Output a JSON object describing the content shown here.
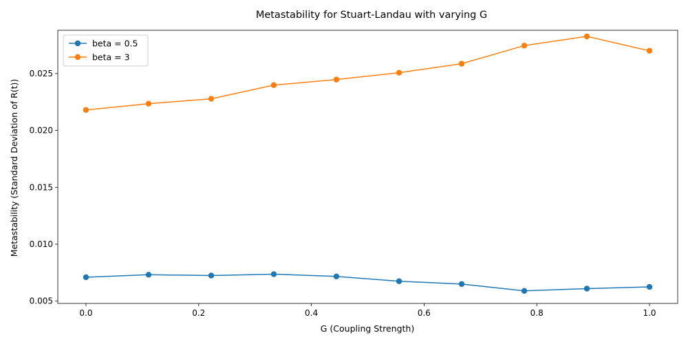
{
  "chart_data": {
    "type": "line",
    "title": "Metastability for Stuart-Landau with varying G",
    "xlabel": "G (Coupling Strength)",
    "ylabel": "Metastability (Standard Deviation of R(t))",
    "xlim": [
      -0.05,
      1.05
    ],
    "ylim": [
      0.0048,
      0.0288
    ],
    "xticks": [
      0.0,
      0.2,
      0.4,
      0.6,
      0.8,
      1.0
    ],
    "xtick_labels": [
      "0.0",
      "0.2",
      "0.4",
      "0.6",
      "0.8",
      "1.0"
    ],
    "yticks": [
      0.005,
      0.01,
      0.015,
      0.02,
      0.025
    ],
    "ytick_labels": [
      "0.005",
      "0.010",
      "0.015",
      "0.020",
      "0.025"
    ],
    "grid": false,
    "legend_position": "top-left",
    "x": [
      0.0,
      0.1111,
      0.2222,
      0.3333,
      0.4444,
      0.5556,
      0.6667,
      0.7778,
      0.8889,
      1.0
    ],
    "series": [
      {
        "name": "beta = 0.5",
        "color": "#1f77b4",
        "values": [
          0.0071,
          0.00732,
          0.00725,
          0.00737,
          0.00717,
          0.00675,
          0.0065,
          0.0059,
          0.0061,
          0.00625
        ]
      },
      {
        "name": "beta = 3",
        "color": "#ff7f0e",
        "values": [
          0.0218,
          0.02235,
          0.02278,
          0.02398,
          0.02447,
          0.02507,
          0.02586,
          0.02745,
          0.02826,
          0.027
        ]
      }
    ]
  }
}
